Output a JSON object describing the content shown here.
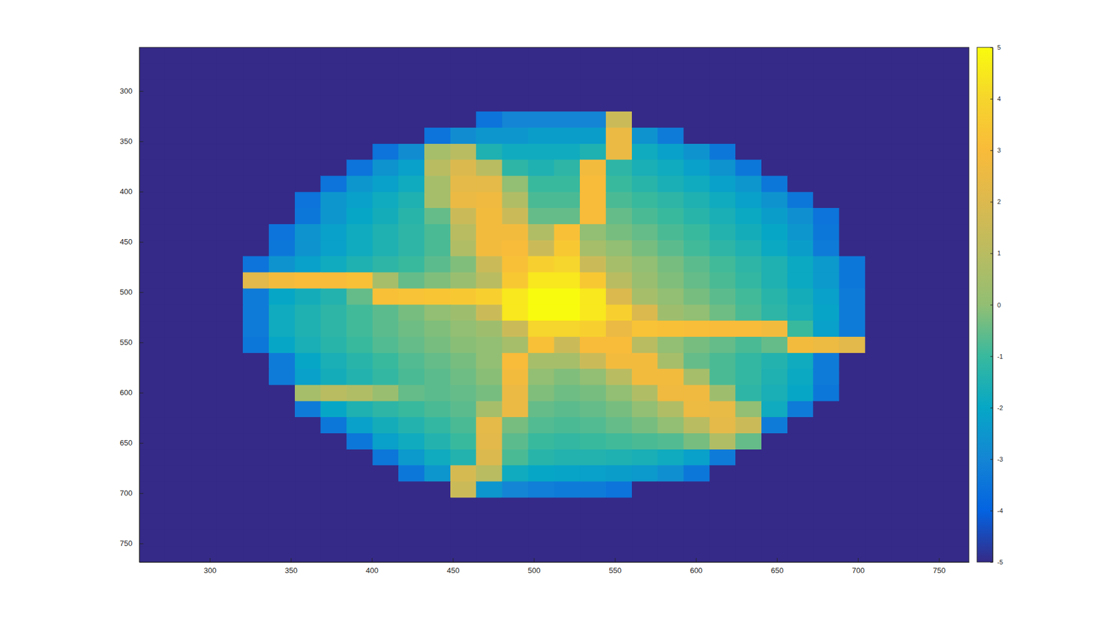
{
  "chart_data": {
    "type": "heatmap",
    "x": [
      264.5,
      280.5,
      296.5,
      312.5,
      328.5,
      344.5,
      360.5,
      376.5,
      392.5,
      408.5,
      424.5,
      440.5,
      456.5,
      472.5,
      488.5,
      504.5,
      520.5,
      536.5,
      552.5,
      568.5,
      584.5,
      600.5,
      616.5,
      632.5,
      648.5,
      664.5,
      680.5,
      696.5,
      712.5,
      728.5,
      744.5,
      760.5
    ],
    "y": [
      264.5,
      280.5,
      296.5,
      312.5,
      328.5,
      344.5,
      360.5,
      376.5,
      392.5,
      408.5,
      424.5,
      440.5,
      456.5,
      472.5,
      488.5,
      504.5,
      520.5,
      536.5,
      552.5,
      568.5,
      584.5,
      600.5,
      616.5,
      632.5,
      648.5,
      664.5,
      680.5,
      696.5,
      712.5,
      728.5,
      744.5,
      760.5
    ],
    "z": [
      [
        -5,
        -5,
        -5,
        -5,
        -5,
        -5,
        -5,
        -5,
        -5,
        -5,
        -5,
        -5,
        -5,
        -5,
        -5,
        -5,
        -5,
        -5,
        -5,
        -5,
        -5,
        -5,
        -5,
        -5,
        -5,
        -5,
        -5,
        -5,
        -5,
        -5,
        -5,
        -5
      ],
      [
        -5,
        -5,
        -5,
        -5,
        -5,
        -5,
        -5,
        -5,
        -5,
        -5,
        -5,
        -5,
        -5,
        -5,
        -5,
        -5,
        -5,
        -5,
        -5,
        -5,
        -5,
        -5,
        -5,
        -5,
        -5,
        -5,
        -5,
        -5,
        -5,
        -5,
        -5,
        -5
      ],
      [
        -5,
        -5,
        -5,
        -5,
        -5,
        -5,
        -5,
        -5,
        -5,
        -5,
        -5,
        -5,
        -5,
        -5,
        -5,
        -5,
        -5,
        -5,
        -5,
        -5,
        -5,
        -5,
        -5,
        -5,
        -5,
        -5,
        -5,
        -5,
        -5,
        -5,
        -5,
        -5
      ],
      [
        -5,
        -5,
        -5,
        -5,
        -5,
        -5,
        -5,
        -5,
        -5,
        -5,
        -5,
        -5,
        -5,
        -5,
        -5,
        -5,
        -5,
        -5,
        -5,
        -5,
        -5,
        -5,
        -5,
        -5,
        -5,
        -5,
        -5,
        -5,
        -5,
        -5,
        -5,
        -5
      ],
      [
        -5,
        -5,
        -5,
        -5,
        -5,
        -5,
        -5,
        -5,
        -5,
        -5,
        -5,
        -5,
        -5,
        -3.5,
        -3,
        -3,
        -3,
        -3,
        1.5,
        -5,
        -5,
        -5,
        -5,
        -5,
        -5,
        -5,
        -5,
        -5,
        -5,
        -5,
        -5,
        -5
      ],
      [
        -5,
        -5,
        -5,
        -5,
        -5,
        -5,
        -5,
        -5,
        -5,
        -5,
        -5,
        -3.5,
        -2.8,
        -2.5,
        -2.5,
        -2.3,
        -2.3,
        -2.3,
        2.5,
        -2.6,
        -3.3,
        -5,
        -5,
        -5,
        -5,
        -5,
        -5,
        -5,
        -5,
        -5,
        -5,
        -5
      ],
      [
        -5,
        -5,
        -5,
        -5,
        -5,
        -5,
        -5,
        -5,
        -5,
        -3.5,
        -2.8,
        0.5,
        1,
        -1.5,
        -1.8,
        -1.8,
        -1.8,
        -1.5,
        2.5,
        -1.8,
        -2.2,
        -2.6,
        -3.4,
        -5,
        -5,
        -5,
        -5,
        -5,
        -5,
        -5,
        -5,
        -5
      ],
      [
        -5,
        -5,
        -5,
        -5,
        -5,
        -5,
        -5,
        -5,
        -3.5,
        -2.6,
        -2.2,
        1,
        2,
        1,
        -1.2,
        -1.5,
        -1.2,
        2.8,
        -1.2,
        -1.6,
        -1.8,
        -2.2,
        -2.6,
        -3.4,
        -5,
        -5,
        -5,
        -5,
        -5,
        -5,
        -5,
        -5
      ],
      [
        -5,
        -5,
        -5,
        -5,
        -5,
        -5,
        -5,
        -3.5,
        -2.5,
        -2.2,
        -1.8,
        0.5,
        2.3,
        2.3,
        0,
        -1,
        -1,
        3,
        -1,
        -1.3,
        -1.6,
        -1.8,
        -2.2,
        -2.5,
        -3.4,
        -5,
        -5,
        -5,
        -5,
        -5,
        -5,
        -5
      ],
      [
        -5,
        -5,
        -5,
        -5,
        -5,
        -5,
        -3.5,
        -2.5,
        -2.2,
        -1.8,
        -1.5,
        0.5,
        2.5,
        2.7,
        0.8,
        -0.8,
        -0.8,
        3,
        -0.8,
        -1,
        -1.2,
        -1.5,
        -1.8,
        -2.2,
        -2.6,
        -3.4,
        -5,
        -5,
        -5,
        -5,
        -5,
        -5
      ],
      [
        -5,
        -5,
        -5,
        -5,
        -5,
        -5,
        -3.4,
        -2.5,
        -2,
        -1.7,
        -1.3,
        -0.5,
        1.5,
        2.8,
        1.5,
        -0.5,
        -0.5,
        3,
        -0.5,
        -0.8,
        -1,
        -1.3,
        -1.6,
        -1.9,
        -2.3,
        -2.7,
        -3.5,
        -5,
        -5,
        -5,
        -5,
        -5
      ],
      [
        -5,
        -5,
        -5,
        -5,
        -5,
        -3.5,
        -2.6,
        -2.2,
        -1.8,
        -1.5,
        -1.2,
        -0.8,
        1,
        2.8,
        2.8,
        0.8,
        3.2,
        0,
        -0.3,
        -0.5,
        -0.8,
        -1,
        -1.4,
        -1.7,
        -2,
        -2.5,
        -3.4,
        -5,
        -5,
        -5,
        -5,
        -5
      ],
      [
        -5,
        -5,
        -5,
        -5,
        -5,
        -3.4,
        -2.6,
        -2.2,
        -1.8,
        -1.5,
        -1.2,
        -0.8,
        0.8,
        2.8,
        3,
        1.5,
        3.5,
        0.5,
        0,
        -0.3,
        -0.6,
        -0.9,
        -1.2,
        -1.5,
        -1.9,
        -2.3,
        -3.3,
        -5,
        -5,
        -5,
        -5,
        -5
      ],
      [
        -5,
        -5,
        -5,
        -5,
        -3.5,
        -2.6,
        -2.2,
        -1.8,
        -1.5,
        -1.2,
        -1,
        -0.6,
        -0.2,
        1.5,
        3.2,
        3.8,
        4,
        1.5,
        0.5,
        0,
        -0.3,
        -0.6,
        -0.9,
        -1.2,
        -1.5,
        -1.9,
        -2.4,
        -3.4,
        -5,
        -5,
        -5,
        -5
      ],
      [
        -5,
        -5,
        -5,
        -5,
        2.2,
        2.8,
        3,
        3,
        3.2,
        0.5,
        -0.5,
        -0.2,
        0.2,
        1,
        3.5,
        4.5,
        4.5,
        3.5,
        1,
        0.2,
        -0.2,
        -0.5,
        -0.8,
        -1.1,
        -1.5,
        -1.9,
        -2.4,
        -3.4,
        -5,
        -5,
        -5,
        -5
      ],
      [
        -5,
        -5,
        -5,
        -5,
        -3.3,
        -2,
        -1.7,
        -1.4,
        -0.5,
        3.2,
        3.3,
        3.4,
        3.5,
        3.8,
        4.5,
        5,
        5,
        4.5,
        2,
        0.5,
        0,
        -0.3,
        -0.6,
        -0.9,
        -1.3,
        -1.7,
        -2.2,
        -3.3,
        -5,
        -5,
        -5,
        -5
      ],
      [
        -5,
        -5,
        -5,
        -5,
        -3.3,
        -1.8,
        -1.5,
        -1.2,
        -0.9,
        -0.6,
        -0.3,
        0,
        0.3,
        1.5,
        4.5,
        5,
        5,
        4.5,
        3.8,
        2,
        0.3,
        0,
        -0.4,
        -0.8,
        -1.2,
        -1.6,
        -2.1,
        -3.3,
        -5,
        -5,
        -5,
        -5
      ],
      [
        -5,
        -5,
        -5,
        -5,
        -3.3,
        -1.8,
        -1.5,
        -1.2,
        -0.9,
        -0.6,
        -0.4,
        -0.2,
        0,
        0.3,
        1.5,
        4,
        4,
        3.8,
        2.5,
        3.3,
        3.2,
        3.1,
        3,
        3,
        2.8,
        -1,
        -2.2,
        -3.3,
        -5,
        -5,
        -5,
        -5
      ],
      [
        -5,
        -5,
        -5,
        -5,
        -3.4,
        -2,
        -1.6,
        -1.3,
        -1,
        -0.7,
        -0.5,
        -0.3,
        -0.1,
        0,
        0.5,
        3.2,
        1.5,
        3,
        3,
        1,
        0,
        -0.3,
        -0.5,
        -0.8,
        -0.5,
        2.8,
        2.6,
        2.2,
        -5,
        -5,
        -5,
        -5
      ],
      [
        -5,
        -5,
        -5,
        -5,
        -5,
        -3.3,
        -2,
        -1.6,
        -1.3,
        -1,
        -0.7,
        -0.5,
        -0.3,
        0,
        3,
        0.5,
        0.5,
        1.5,
        2.8,
        2.8,
        0.5,
        -0.5,
        -0.8,
        -1.1,
        -1.4,
        -1.8,
        -3.3,
        -5,
        -5,
        -5,
        -5,
        -5
      ],
      [
        -5,
        -5,
        -5,
        -5,
        -5,
        -3.3,
        -2.2,
        -1.7,
        -1.4,
        -1.1,
        -0.8,
        -0.6,
        -0.4,
        -0.1,
        2.8,
        0,
        -0.2,
        0,
        1,
        2.8,
        2.8,
        0.5,
        -0.8,
        -1.1,
        -1.5,
        -1.9,
        -3.3,
        -5,
        -5,
        -5,
        -5,
        -5
      ],
      [
        -5,
        -5,
        -5,
        -5,
        -5,
        -5,
        0.5,
        1,
        0.8,
        0.2,
        -0.5,
        -0.6,
        -0.5,
        -0.3,
        2.5,
        -0.2,
        -0.4,
        -0.3,
        0,
        0.8,
        2.7,
        2.7,
        0.3,
        -1.2,
        -1.6,
        -2,
        -3.4,
        -5,
        -5,
        -5,
        -5,
        -5
      ],
      [
        -5,
        -5,
        -5,
        -5,
        -5,
        -5,
        -3.3,
        -2,
        -1.5,
        -1.2,
        -1,
        -0.8,
        -0.6,
        0.5,
        2.5,
        -0.5,
        -0.6,
        -0.5,
        -0.3,
        0,
        0.8,
        2.6,
        2.4,
        0,
        -1.8,
        -3.3,
        -5,
        -5,
        -5,
        -5,
        -5,
        -5
      ],
      [
        -5,
        -5,
        -5,
        -5,
        -5,
        -5,
        -5,
        -3.4,
        -2.2,
        -1.7,
        -1.4,
        -1.1,
        -0.8,
        2.3,
        -0.3,
        -0.7,
        -0.8,
        -0.7,
        -0.5,
        -0.3,
        0,
        1,
        2.3,
        1.5,
        -3.3,
        -5,
        -5,
        -5,
        -5,
        -5,
        -5,
        -5
      ],
      [
        -5,
        -5,
        -5,
        -5,
        -5,
        -5,
        -5,
        -5,
        -3.4,
        -2.2,
        -1.8,
        -1.4,
        -1,
        2.2,
        -0.6,
        -1,
        -1.1,
        -1,
        -0.9,
        -0.8,
        -0.7,
        -0.3,
        0.8,
        -0.5,
        -5,
        -5,
        -5,
        -5,
        -5,
        -5,
        -5,
        -5
      ],
      [
        -5,
        -5,
        -5,
        -5,
        -5,
        -5,
        -5,
        -5,
        -5,
        -3.4,
        -2.4,
        -1.8,
        -1.4,
        2,
        -0.8,
        -1.3,
        -1.4,
        -1.4,
        -1.5,
        -1.6,
        -1.8,
        -2.2,
        -3.3,
        -5,
        -5,
        -5,
        -5,
        -5,
        -5,
        -5,
        -5,
        -5
      ],
      [
        -5,
        -5,
        -5,
        -5,
        -5,
        -5,
        -5,
        -5,
        -5,
        -5,
        -3.4,
        -2.5,
        1.8,
        1,
        -1.8,
        -2,
        -2.1,
        -2.2,
        -2.3,
        -2.4,
        -2.7,
        -3.4,
        -5,
        -5,
        -5,
        -5,
        -5,
        -5,
        -5,
        -5,
        -5,
        -5
      ],
      [
        -5,
        -5,
        -5,
        -5,
        -5,
        -5,
        -5,
        -5,
        -5,
        -5,
        -5,
        -5,
        1.5,
        -2.5,
        -3,
        -3.2,
        -3.3,
        -3.3,
        -3.5,
        -5,
        -5,
        -5,
        -5,
        -5,
        -5,
        -5,
        -5,
        -5,
        -5,
        -5,
        -5,
        -5
      ],
      [
        -5,
        -5,
        -5,
        -5,
        -5,
        -5,
        -5,
        -5,
        -5,
        -5,
        -5,
        -5,
        -5,
        -5,
        -5,
        -5,
        -5,
        -5,
        -5,
        -5,
        -5,
        -5,
        -5,
        -5,
        -5,
        -5,
        -5,
        -5,
        -5,
        -5,
        -5,
        -5
      ],
      [
        -5,
        -5,
        -5,
        -5,
        -5,
        -5,
        -5,
        -5,
        -5,
        -5,
        -5,
        -5,
        -5,
        -5,
        -5,
        -5,
        -5,
        -5,
        -5,
        -5,
        -5,
        -5,
        -5,
        -5,
        -5,
        -5,
        -5,
        -5,
        -5,
        -5,
        -5,
        -5
      ],
      [
        -5,
        -5,
        -5,
        -5,
        -5,
        -5,
        -5,
        -5,
        -5,
        -5,
        -5,
        -5,
        -5,
        -5,
        -5,
        -5,
        -5,
        -5,
        -5,
        -5,
        -5,
        -5,
        -5,
        -5,
        -5,
        -5,
        -5,
        -5,
        -5,
        -5,
        -5,
        -5
      ],
      [
        -5,
        -5,
        -5,
        -5,
        -5,
        -5,
        -5,
        -5,
        -5,
        -5,
        -5,
        -5,
        -5,
        -5,
        -5,
        -5,
        -5,
        -5,
        -5,
        -5,
        -5,
        -5,
        -5,
        -5,
        -5,
        -5,
        -5,
        -5,
        -5,
        -5,
        -5,
        -5
      ]
    ],
    "xlim": [
      256.5,
      768.5
    ],
    "ylim": [
      256.5,
      768.5
    ],
    "xticks": [
      300,
      350,
      400,
      450,
      500,
      550,
      600,
      650,
      700,
      750
    ],
    "yticks": [
      300,
      350,
      400,
      450,
      500,
      550,
      600,
      650,
      700,
      750
    ],
    "color_range": [
      -5,
      5
    ],
    "color_ticks": [
      -5,
      -4,
      -3,
      -2,
      -1,
      0,
      1,
      2,
      3,
      4,
      5
    ]
  }
}
